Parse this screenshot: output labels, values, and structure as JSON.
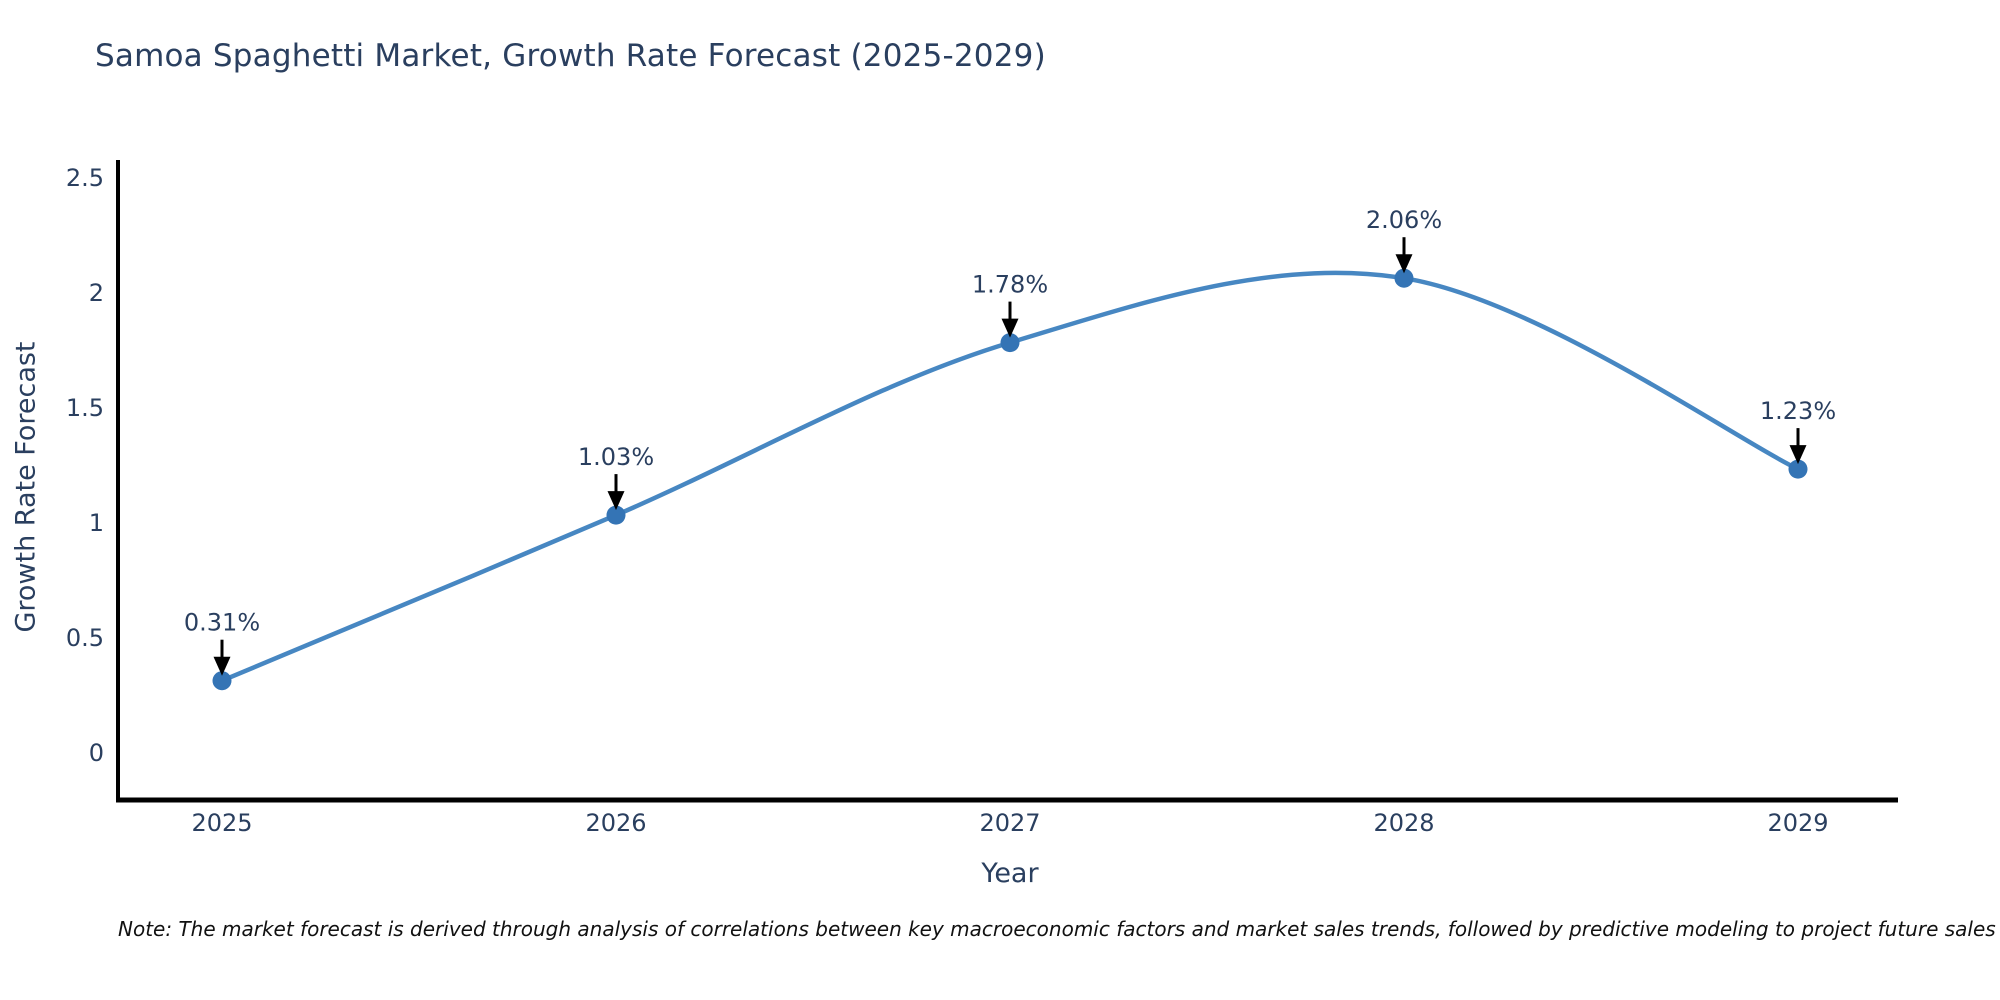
{
  "chart_data": {
    "type": "line",
    "line_shape": "spline",
    "title": "Samoa Spaghetti Market, Growth Rate Forecast (2025-2029)",
    "xlabel": "Year",
    "ylabel": "Growth Rate Forecast",
    "categories": [
      "2025",
      "2026",
      "2027",
      "2028",
      "2029"
    ],
    "series": [
      {
        "name": "Growth Rate Forecast",
        "values": [
          0.31,
          1.03,
          1.78,
          2.06,
          1.23
        ],
        "point_labels": [
          "0.31%",
          "1.03%",
          "1.78%",
          "2.06%",
          "1.23%"
        ]
      }
    ],
    "yticks": [
      0,
      0.5,
      1,
      1.5,
      2,
      2.5
    ],
    "ytick_labels": [
      "0",
      "0.5",
      "1",
      "1.5",
      "2",
      "2.5"
    ],
    "ylim": [
      -0.21,
      2.57
    ],
    "grid": false,
    "legend": "none",
    "annotations_style": "value label with downward black arrow above each point",
    "colors": {
      "line": "#4787c2",
      "marker": "#3474b5",
      "axis": "#000000",
      "text": "#2a3f5f",
      "arrow": "#000000",
      "background": "#ffffff"
    },
    "note": "Note: The market forecast is derived through analysis of correlations between key macroeconomic factors and market sales trends, followed by predictive modeling to project future sales"
  }
}
